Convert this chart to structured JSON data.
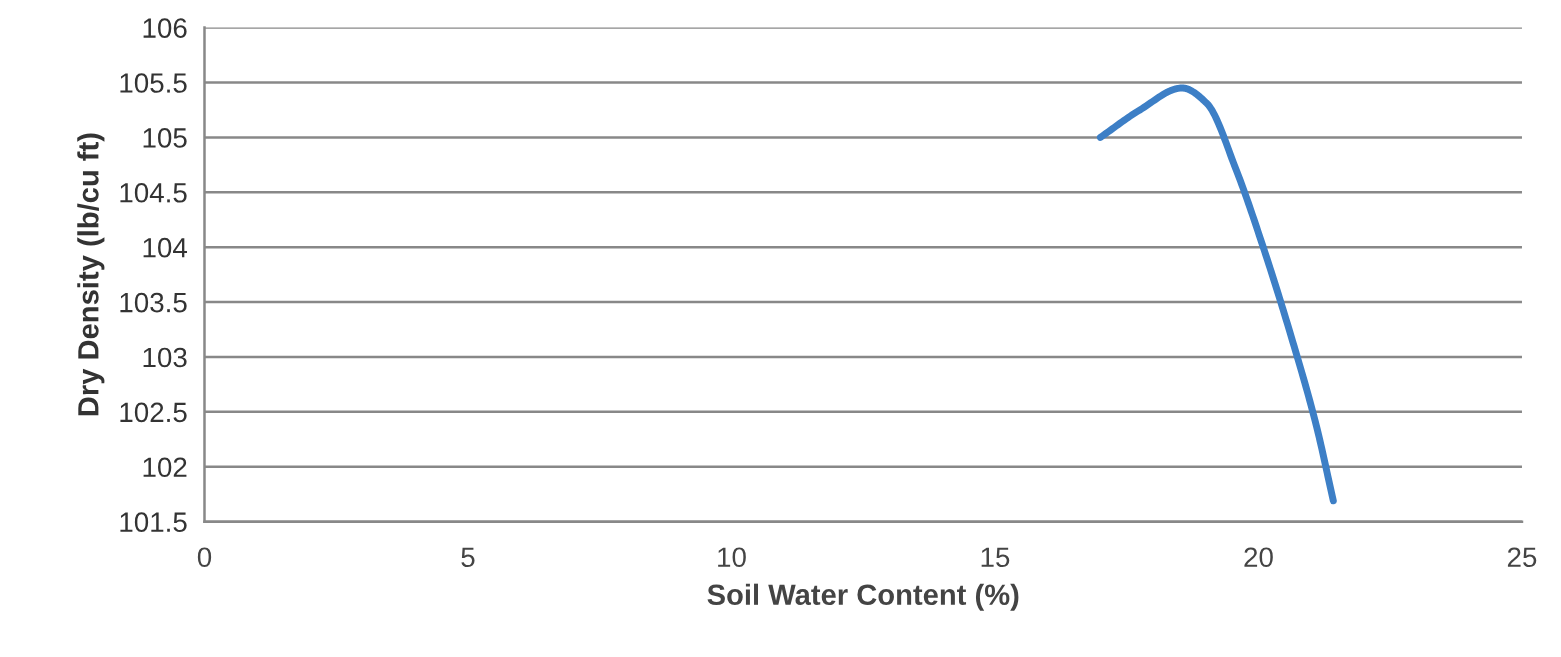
{
  "chart_data": {
    "type": "line",
    "xlabel": "Soil Water Content (%)",
    "ylabel": "Dry Density (lb/cu ft)",
    "series": [
      {
        "color": "#3d7fc6",
        "x": [
          17.0,
          17.75,
          18.55,
          19.02,
          19.58,
          20.09,
          20.6,
          21.1,
          21.42
        ],
        "values": [
          105.0,
          105.25,
          105.45,
          105.31,
          104.7,
          104.0,
          103.22,
          102.37,
          101.69
        ]
      }
    ],
    "xlim": [
      0,
      25
    ],
    "xticks": [
      0,
      5,
      10,
      15,
      20,
      25
    ],
    "ylim": [
      101.5,
      106
    ],
    "yticks": [
      101.5,
      102,
      102.5,
      103,
      103.5,
      104,
      104.5,
      105,
      105.5,
      106
    ],
    "grid": "y",
    "marker": "none",
    "line_style": "solid"
  }
}
